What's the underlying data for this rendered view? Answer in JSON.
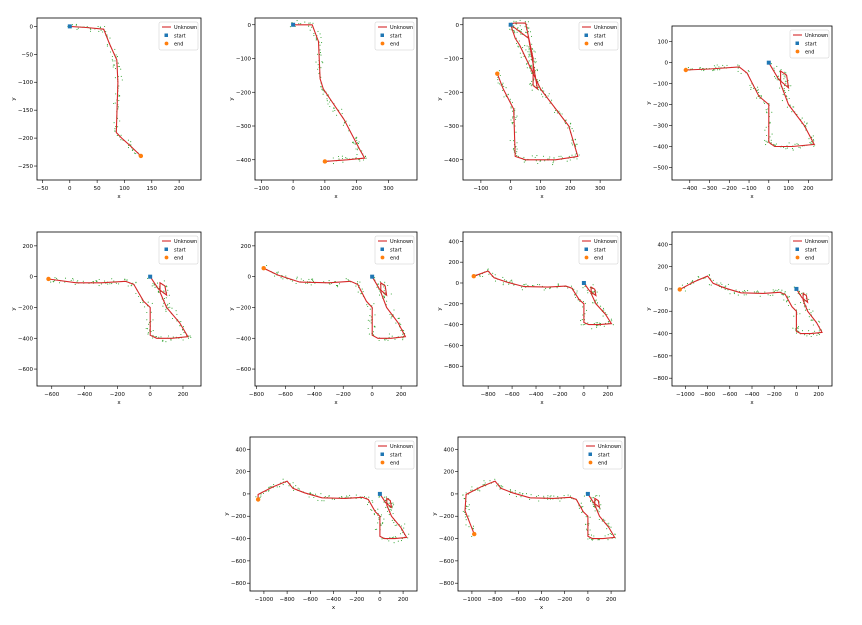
{
  "chart_data": [
    {
      "type": "line",
      "xlabel": "x",
      "ylabel": "y",
      "xlim": [
        -60,
        240
      ],
      "ylim": [
        -275,
        15
      ],
      "xticks": [
        -50,
        0,
        50,
        100,
        150,
        200
      ],
      "yticks": [
        0,
        -50,
        -100,
        -150,
        -200,
        -250
      ],
      "legend": [
        "Unknown",
        "start",
        "end"
      ],
      "legend_position": "top-right",
      "start": [
        0,
        0
      ],
      "end": [
        130,
        -232
      ],
      "series": [
        {
          "name": "Unknown",
          "x": [
            0,
            30,
            62,
            72,
            86,
            88,
            85,
            95,
            112,
            130
          ],
          "y": [
            0,
            -2,
            -5,
            -30,
            -60,
            -100,
            -190,
            -200,
            -215,
            -232
          ]
        }
      ]
    },
    {
      "type": "line",
      "xlabel": "x",
      "ylabel": "y",
      "xlim": [
        -120,
        390
      ],
      "ylim": [
        -460,
        20
      ],
      "xticks": [
        -100,
        0,
        100,
        200,
        300
      ],
      "yticks": [
        0,
        -100,
        -200,
        -300,
        -400
      ],
      "legend": [
        "Unknown",
        "start",
        "end"
      ],
      "legend_position": "top-right",
      "start": [
        0,
        0
      ],
      "end": [
        100,
        -405
      ],
      "series": [
        {
          "name": "Unknown",
          "x": [
            0,
            60,
            80,
            85,
            95,
            160,
            210,
            225,
            170,
            100
          ],
          "y": [
            0,
            0,
            -50,
            -160,
            -190,
            -280,
            -370,
            -395,
            -400,
            -405
          ]
        }
      ]
    },
    {
      "type": "line",
      "xlabel": "x",
      "ylabel": "y",
      "xlim": [
        -160,
        370
      ],
      "ylim": [
        -460,
        20
      ],
      "xticks": [
        -100,
        0,
        100,
        200,
        300
      ],
      "yticks": [
        0,
        -100,
        -200,
        -300,
        -400
      ],
      "legend": [
        "Unknown",
        "start",
        "end"
      ],
      "legend_position": "top-right",
      "start": [
        0,
        0
      ],
      "end": [
        -45,
        -145
      ],
      "series": [
        {
          "name": "Unknown",
          "x": [
            -45,
            -25,
            10,
            15,
            50,
            150,
            225,
            195,
            100,
            30,
            15,
            0,
            10,
            50,
            75,
            75,
            90,
            60,
            0
          ],
          "y": [
            -145,
            -190,
            -250,
            -390,
            -400,
            -400,
            -390,
            -300,
            -190,
            -60,
            -40,
            0,
            5,
            5,
            -100,
            -180,
            -190,
            -40,
            0
          ]
        }
      ]
    },
    {
      "type": "line",
      "xlabel": "x",
      "ylabel": "y",
      "xlim": [
        -490,
        320
      ],
      "ylim": [
        -560,
        175
      ],
      "xticks": [
        -400,
        -300,
        -200,
        -100,
        0,
        100,
        200
      ],
      "yticks": [
        100,
        0,
        -100,
        -200,
        -300,
        -400,
        -500
      ],
      "legend": [
        "Unknown",
        "start",
        "end"
      ],
      "legend_position": "top-right",
      "start": [
        0,
        0
      ],
      "end": [
        -420,
        -35
      ],
      "series": [
        {
          "name": "Unknown",
          "x": [
            -420,
            -300,
            -150,
            -110,
            -50,
            0,
            0,
            30,
            120,
            230,
            180,
            100,
            60,
            60,
            90,
            100,
            50,
            0
          ],
          "y": [
            -35,
            -30,
            -20,
            -50,
            -160,
            -200,
            -380,
            -400,
            -400,
            -390,
            -300,
            -200,
            -100,
            -40,
            -60,
            -120,
            -80,
            0
          ]
        }
      ]
    },
    {
      "type": "line",
      "xlabel": "x",
      "ylabel": "y",
      "xlim": [
        -690,
        310
      ],
      "ylim": [
        -710,
        290
      ],
      "xticks": [
        -600,
        -400,
        -200,
        0,
        200
      ],
      "yticks": [
        200,
        0,
        -200,
        -400,
        -600
      ],
      "legend": [
        "Unknown",
        "start",
        "end"
      ],
      "legend_position": "top-right",
      "start": [
        0,
        0
      ],
      "end": [
        -620,
        -15
      ],
      "series": [
        {
          "name": "Unknown",
          "x": [
            -620,
            -450,
            -300,
            -150,
            -100,
            -40,
            0,
            0,
            40,
            130,
            230,
            180,
            100,
            60,
            60,
            90,
            100,
            50,
            0
          ],
          "y": [
            -15,
            -40,
            -40,
            -30,
            -50,
            -160,
            -200,
            -380,
            -400,
            -400,
            -390,
            -300,
            -200,
            -100,
            -40,
            -60,
            -120,
            -80,
            0
          ]
        }
      ]
    },
    {
      "type": "line",
      "xlabel": "x",
      "ylabel": "y",
      "xlim": [
        -810,
        310
      ],
      "ylim": [
        -710,
        290
      ],
      "xticks": [
        -800,
        -600,
        -400,
        -200,
        0,
        200
      ],
      "yticks": [
        200,
        0,
        -200,
        -400,
        -600
      ],
      "legend": [
        "Unknown",
        "start",
        "end"
      ],
      "legend_position": "top-right",
      "start": [
        0,
        0
      ],
      "end": [
        -750,
        55
      ],
      "series": [
        {
          "name": "Unknown",
          "x": [
            -750,
            -650,
            -500,
            -300,
            -150,
            -100,
            -40,
            0,
            0,
            40,
            130,
            230,
            180,
            100,
            60,
            60,
            90,
            100,
            50,
            0
          ],
          "y": [
            55,
            10,
            -35,
            -40,
            -30,
            -50,
            -160,
            -200,
            -380,
            -400,
            -400,
            -390,
            -300,
            -200,
            -100,
            -40,
            -60,
            -120,
            -80,
            0
          ]
        }
      ]
    },
    {
      "type": "line",
      "xlabel": "x",
      "ylabel": "y",
      "xlim": [
        -1010,
        310
      ],
      "ylim": [
        -990,
        490
      ],
      "xticks": [
        -800,
        -600,
        -400,
        -200,
        0,
        200
      ],
      "yticks": [
        400,
        200,
        0,
        -200,
        -400,
        -600,
        -800
      ],
      "legend": [
        "Unknown",
        "start",
        "end"
      ],
      "legend_position": "top-right",
      "start": [
        0,
        0
      ],
      "end": [
        -920,
        65
      ],
      "series": [
        {
          "name": "Unknown",
          "x": [
            -920,
            -800,
            -750,
            -650,
            -500,
            -300,
            -150,
            -100,
            -40,
            0,
            0,
            40,
            130,
            230,
            180,
            100,
            60,
            60,
            90,
            100,
            50,
            0
          ],
          "y": [
            65,
            115,
            50,
            10,
            -35,
            -40,
            -30,
            -50,
            -160,
            -200,
            -380,
            -400,
            -400,
            -390,
            -300,
            -200,
            -100,
            -40,
            -60,
            -120,
            -80,
            0
          ]
        }
      ]
    },
    {
      "type": "line",
      "xlabel": "x",
      "ylabel": "y",
      "xlim": [
        -1120,
        320
      ],
      "ylim": [
        -870,
        510
      ],
      "xticks": [
        -1000,
        -800,
        -600,
        -400,
        -200,
        0,
        200
      ],
      "yticks": [
        400,
        200,
        0,
        -200,
        -400,
        -600,
        -800
      ],
      "legend": [
        "Unknown",
        "start",
        "end"
      ],
      "legend_position": "top-right",
      "start": [
        0,
        0
      ],
      "end": [
        -1050,
        -5
      ],
      "series": [
        {
          "name": "Unknown",
          "x": [
            -1050,
            -920,
            -800,
            -750,
            -650,
            -500,
            -300,
            -150,
            -100,
            -40,
            0,
            0,
            40,
            130,
            230,
            180,
            100,
            60,
            60,
            90,
            100,
            50,
            0
          ],
          "y": [
            -5,
            65,
            115,
            50,
            10,
            -35,
            -40,
            -30,
            -50,
            -160,
            -200,
            -380,
            -400,
            -400,
            -390,
            -300,
            -200,
            -100,
            -40,
            -60,
            -120,
            -80,
            0
          ]
        }
      ]
    },
    {
      "type": "line",
      "xlabel": "x",
      "ylabel": "y",
      "xlim": [
        -1120,
        320
      ],
      "ylim": [
        -870,
        510
      ],
      "xticks": [
        -1000,
        -800,
        -600,
        -400,
        -200,
        0,
        200
      ],
      "yticks": [
        400,
        200,
        0,
        -200,
        -400,
        -600,
        -800
      ],
      "legend": [
        "Unknown",
        "start",
        "end"
      ],
      "legend_position": "top-right",
      "start": [
        0,
        0
      ],
      "end": [
        -1050,
        -50
      ],
      "series": [
        {
          "name": "Unknown",
          "x": [
            -1050,
            -1050,
            -920,
            -800,
            -750,
            -650,
            -500,
            -300,
            -150,
            -100,
            -40,
            0,
            0,
            40,
            130,
            230,
            180,
            100,
            60,
            60,
            90,
            100,
            50,
            0
          ],
          "y": [
            -50,
            -5,
            65,
            115,
            50,
            10,
            -35,
            -40,
            -30,
            -50,
            -160,
            -200,
            -380,
            -400,
            -400,
            -390,
            -300,
            -200,
            -100,
            -40,
            -60,
            -120,
            -80,
            0
          ]
        }
      ]
    },
    {
      "type": "line",
      "xlabel": "x",
      "ylabel": "y",
      "xlim": [
        -1120,
        320
      ],
      "ylim": [
        -870,
        510
      ],
      "xticks": [
        -1000,
        -800,
        -600,
        -400,
        -200,
        0,
        200
      ],
      "yticks": [
        400,
        200,
        0,
        -200,
        -400,
        -600,
        -800
      ],
      "legend": [
        "Unknown",
        "start",
        "end"
      ],
      "legend_position": "top-right",
      "start": [
        0,
        0
      ],
      "end": [
        -980,
        -360
      ],
      "series": [
        {
          "name": "Unknown",
          "x": [
            -980,
            -1060,
            -1050,
            -920,
            -800,
            -750,
            -650,
            -500,
            -300,
            -150,
            -100,
            -40,
            0,
            0,
            40,
            130,
            230,
            180,
            100,
            60,
            60,
            90,
            100,
            50,
            0
          ],
          "y": [
            -360,
            -150,
            -5,
            65,
            115,
            50,
            10,
            -35,
            -40,
            -30,
            -50,
            -160,
            -200,
            -380,
            -400,
            -400,
            -390,
            -300,
            -200,
            -100,
            -40,
            -60,
            -120,
            -80,
            0
          ]
        }
      ]
    }
  ]
}
